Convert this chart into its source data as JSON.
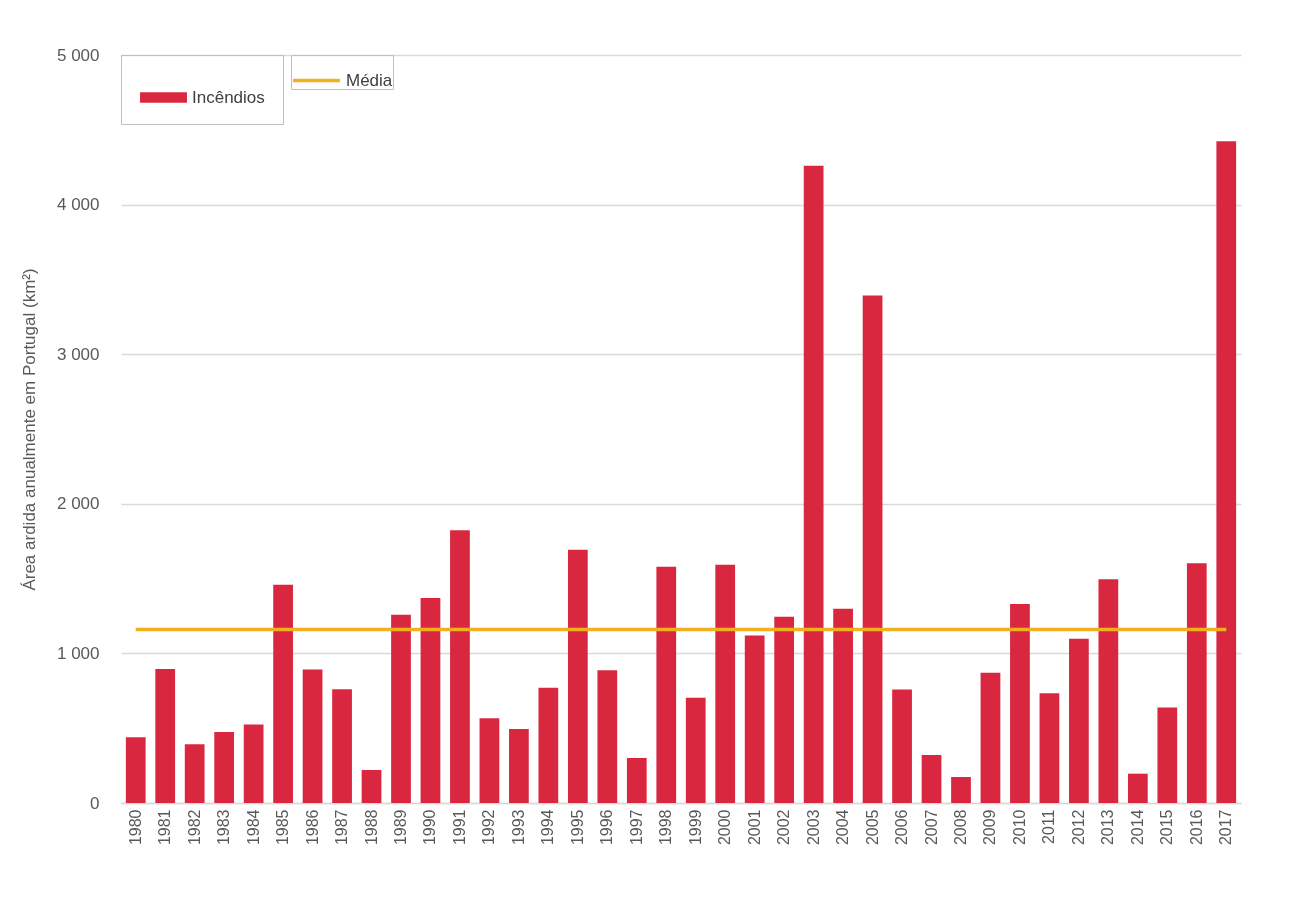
{
  "chart_data": {
    "type": "bar",
    "ylabel": "Área ardida anualmente em Portugal (km²)",
    "categories": [
      "1980",
      "1981",
      "1982",
      "1983",
      "1984",
      "1985",
      "1986",
      "1987",
      "1988",
      "1989",
      "1990",
      "1991",
      "1992",
      "1993",
      "1994",
      "1995",
      "1996",
      "1997",
      "1998",
      "1999",
      "2000",
      "2001",
      "2002",
      "2003",
      "2004",
      "2005",
      "2006",
      "2007",
      "2008",
      "2009",
      "2010",
      "2011",
      "2012",
      "2013",
      "2014",
      "2015",
      "2016",
      "2017"
    ],
    "series": [
      {
        "name": "Incêndios",
        "color": "#d9273f",
        "values": [
          440,
          895,
          393,
          475,
          524,
          1459,
          892,
          761,
          221,
          1258,
          1370,
          1823,
          567,
          495,
          770,
          1693,
          888,
          301,
          1580,
          703,
          1593,
          1120,
          1245,
          4259,
          1298,
          3393,
          758,
          321,
          174,
          870,
          1330,
          734,
          1098,
          1495,
          196,
          638,
          1602,
          4424
        ]
      },
      {
        "name": "Média",
        "type": "line",
        "color": "#f2b01e",
        "values": [
          1160,
          1160,
          1160,
          1160,
          1160,
          1160,
          1160,
          1160,
          1160,
          1160,
          1160,
          1160,
          1160,
          1160,
          1160,
          1160,
          1160,
          1160,
          1160,
          1160,
          1160,
          1160,
          1160,
          1160,
          1160,
          1160,
          1160,
          1160,
          1160,
          1160,
          1160,
          1160,
          1160,
          1160,
          1160,
          1160,
          1160,
          1160
        ]
      }
    ],
    "ylim": [
      0,
      5000
    ],
    "yticks": [
      0,
      {
        "value": 1000,
        "label": "1 000"
      },
      {
        "value": 2000,
        "label": "2 000"
      },
      {
        "value": 3000,
        "label": "3 000"
      },
      {
        "value": 4000,
        "label": "4 000"
      },
      {
        "value": 5000,
        "label": "5 000"
      }
    ],
    "grid": "y",
    "legend": "top left"
  }
}
